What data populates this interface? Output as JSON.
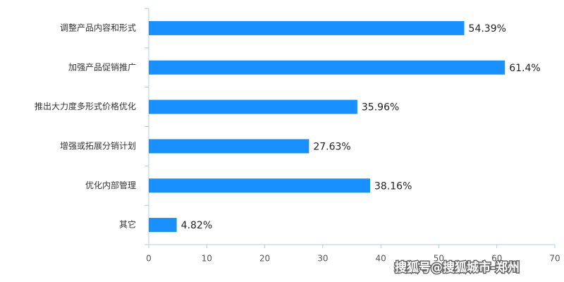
{
  "chart_data": {
    "type": "bar",
    "orientation": "horizontal",
    "categories": [
      "调整产品内容和形式",
      "加强产品促销推广",
      "推出大力度多形式价格优化",
      "增强或拓展分销计划",
      "优化内部管理",
      "其它"
    ],
    "values": [
      54.39,
      61.4,
      35.96,
      27.63,
      38.16,
      4.82
    ],
    "value_labels": [
      "54.39%",
      "61.4%",
      "35.96%",
      "27.63%",
      "38.16%",
      "4.82%"
    ],
    "color": "#1890ff",
    "xlim": [
      0,
      70
    ],
    "xticks": [
      0,
      10,
      20,
      30,
      40,
      50,
      60,
      70
    ],
    "watermark": "搜狐号@搜狐城市-郑州"
  }
}
